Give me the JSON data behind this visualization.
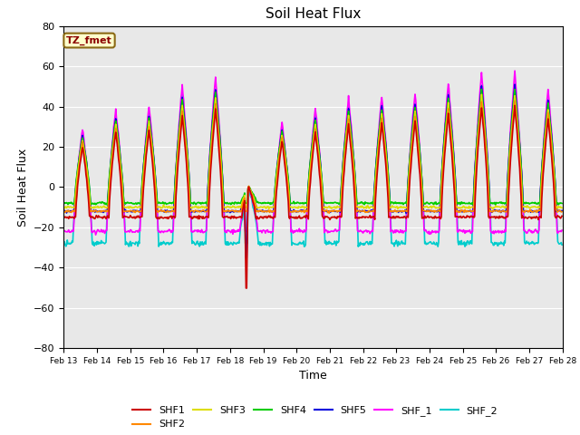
{
  "title": "Soil Heat Flux",
  "ylabel": "Soil Heat Flux",
  "xlabel": "Time",
  "ylim": [
    -80,
    80
  ],
  "xlim": [
    0,
    360
  ],
  "xtick_labels": [
    "Feb 13",
    "Feb 14",
    "Feb 15",
    "Feb 16",
    "Feb 17",
    "Feb 18",
    "Feb 19",
    "Feb 20",
    "Feb 21",
    "Feb 22",
    "Feb 23",
    "Feb 24",
    "Feb 25",
    "Feb 26",
    "Feb 27",
    "Feb 28"
  ],
  "xtick_positions": [
    0,
    24,
    48,
    72,
    96,
    120,
    144,
    168,
    192,
    216,
    240,
    264,
    288,
    312,
    336,
    360
  ],
  "legend_entries": [
    "SHF1",
    "SHF2",
    "SHF3",
    "SHF4",
    "SHF5",
    "SHF_1",
    "SHF_2"
  ],
  "colors": {
    "SHF1": "#cc0000",
    "SHF2": "#ff8800",
    "SHF3": "#dddd00",
    "SHF4": "#00cc00",
    "SHF5": "#0000dd",
    "SHF_1": "#ff00ff",
    "SHF_2": "#00cccc"
  },
  "bg_color": "#e8e8e8",
  "annotation_text": "TZ_fmet",
  "annotation_fg": "#8b0000",
  "annotation_bg": "#ffffcc",
  "annotation_border": "#8b6914",
  "day_peak_scales": [
    0.45,
    0.6,
    0.62,
    0.78,
    0.85,
    0.0,
    0.5,
    0.6,
    0.68,
    0.7,
    0.72,
    0.8,
    0.88,
    0.88,
    0.75
  ],
  "base_peak": 65
}
